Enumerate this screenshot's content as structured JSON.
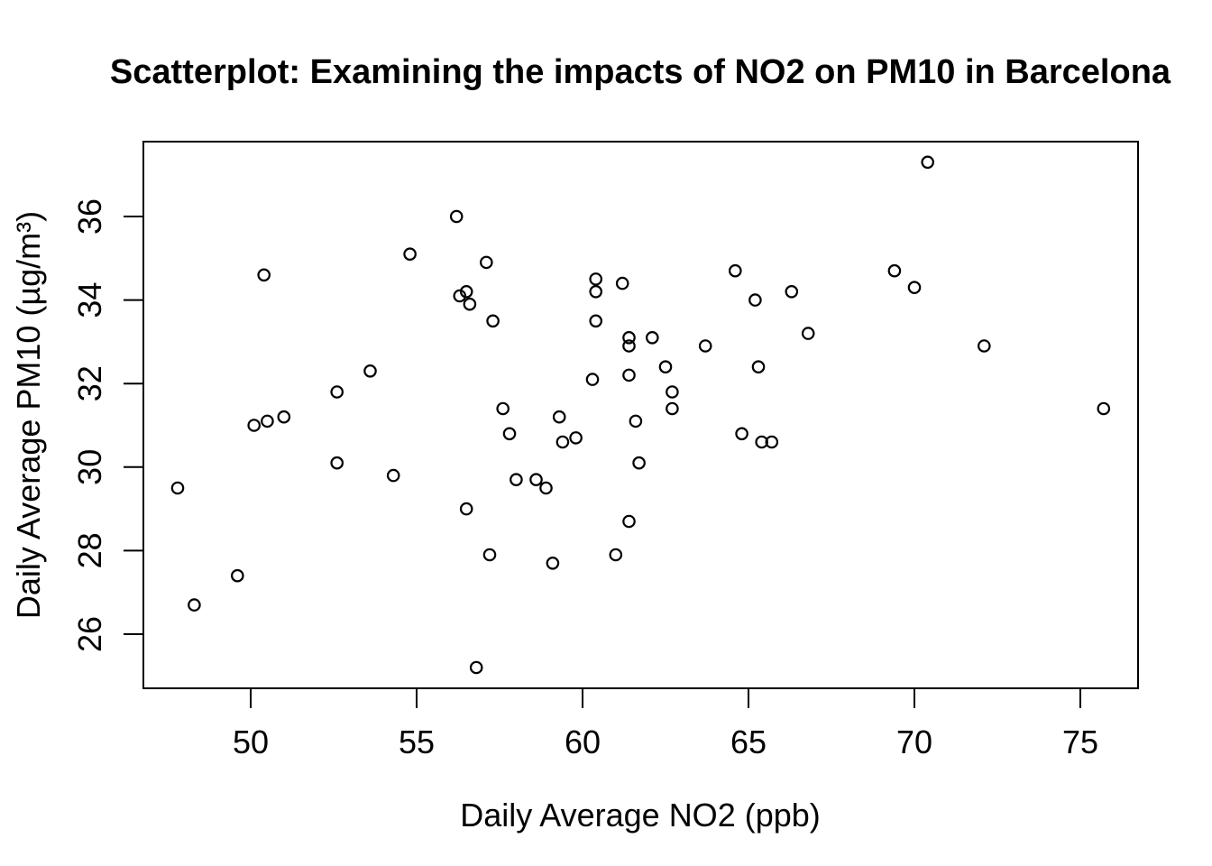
{
  "figure": {
    "background_color": "#ffffff",
    "foreground_color": "#000000"
  },
  "chart_data": {
    "type": "scatter",
    "title": "Scatterplot: Examining the impacts of NO2 on PM10 in Barcelona",
    "xlabel": "Daily Average NO2 (ppb)",
    "ylabel": "Daily Average PM10 (µg/m³)",
    "x_ticks": [
      50,
      55,
      60,
      65,
      70,
      75
    ],
    "y_ticks": [
      26,
      28,
      30,
      32,
      34,
      36
    ],
    "xlim": [
      46.8,
      76.9
    ],
    "ylim": [
      24.7,
      37.9
    ],
    "grid": false,
    "legend": "none",
    "marker": "open-circle",
    "marker_color": "#000000",
    "points": [
      [
        47.8,
        29.5
      ],
      [
        48.3,
        26.7
      ],
      [
        49.6,
        27.4
      ],
      [
        50.1,
        31.0
      ],
      [
        50.4,
        34.6
      ],
      [
        50.5,
        31.1
      ],
      [
        51.0,
        31.2
      ],
      [
        52.6,
        31.8
      ],
      [
        52.6,
        30.1
      ],
      [
        53.6,
        32.3
      ],
      [
        54.3,
        29.8
      ],
      [
        54.8,
        35.1
      ],
      [
        56.2,
        36.0
      ],
      [
        56.3,
        34.1
      ],
      [
        56.5,
        34.2
      ],
      [
        56.6,
        33.9
      ],
      [
        56.5,
        29.0
      ],
      [
        56.8,
        25.2
      ],
      [
        57.1,
        34.9
      ],
      [
        57.3,
        33.5
      ],
      [
        57.2,
        27.9
      ],
      [
        57.6,
        31.4
      ],
      [
        57.8,
        30.8
      ],
      [
        58.0,
        29.7
      ],
      [
        58.6,
        29.7
      ],
      [
        58.9,
        29.5
      ],
      [
        59.1,
        27.7
      ],
      [
        59.3,
        31.2
      ],
      [
        59.4,
        30.6
      ],
      [
        59.8,
        30.7
      ],
      [
        60.3,
        32.1
      ],
      [
        60.4,
        34.5
      ],
      [
        60.4,
        34.2
      ],
      [
        60.4,
        33.5
      ],
      [
        61.0,
        27.9
      ],
      [
        61.2,
        34.4
      ],
      [
        61.4,
        33.1
      ],
      [
        61.4,
        32.9
      ],
      [
        61.4,
        32.2
      ],
      [
        61.4,
        28.7
      ],
      [
        61.6,
        31.1
      ],
      [
        61.7,
        30.1
      ],
      [
        62.1,
        33.1
      ],
      [
        62.5,
        32.4
      ],
      [
        62.7,
        31.8
      ],
      [
        62.7,
        31.4
      ],
      [
        63.7,
        32.9
      ],
      [
        64.6,
        34.7
      ],
      [
        64.8,
        30.8
      ],
      [
        65.2,
        34.0
      ],
      [
        65.3,
        32.4
      ],
      [
        65.4,
        30.6
      ],
      [
        65.7,
        30.6
      ],
      [
        66.3,
        34.2
      ],
      [
        66.8,
        33.2
      ],
      [
        69.4,
        34.7
      ],
      [
        70.0,
        34.3
      ],
      [
        70.4,
        37.3
      ],
      [
        72.1,
        32.9
      ],
      [
        75.7,
        31.4
      ]
    ]
  }
}
